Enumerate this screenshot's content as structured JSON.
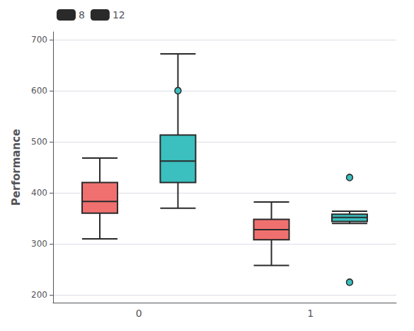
{
  "chart_data": {
    "type": "boxplot",
    "categories": [
      "0",
      "1"
    ],
    "series": [
      {
        "name": "8",
        "color": "#F07070",
        "values": [
          [
            310,
            360,
            383,
            420,
            468
          ],
          [
            258,
            308,
            328,
            348,
            382
          ]
        ],
        "fliers": [
          [],
          []
        ]
      },
      {
        "name": "12",
        "color": "#3BBFBF",
        "values": [
          [
            370,
            420,
            462,
            513,
            672
          ],
          [
            340,
            344,
            352,
            358,
            364
          ]
        ],
        "fliers": [
          [
            600
          ],
          [
            430,
            225
          ]
        ]
      }
    ],
    "ylabel": "Performance",
    "ylim": [
      185,
      715
    ],
    "yticks": [
      200,
      300,
      400,
      500,
      600,
      700
    ],
    "grid": true,
    "legend": "upper left"
  }
}
